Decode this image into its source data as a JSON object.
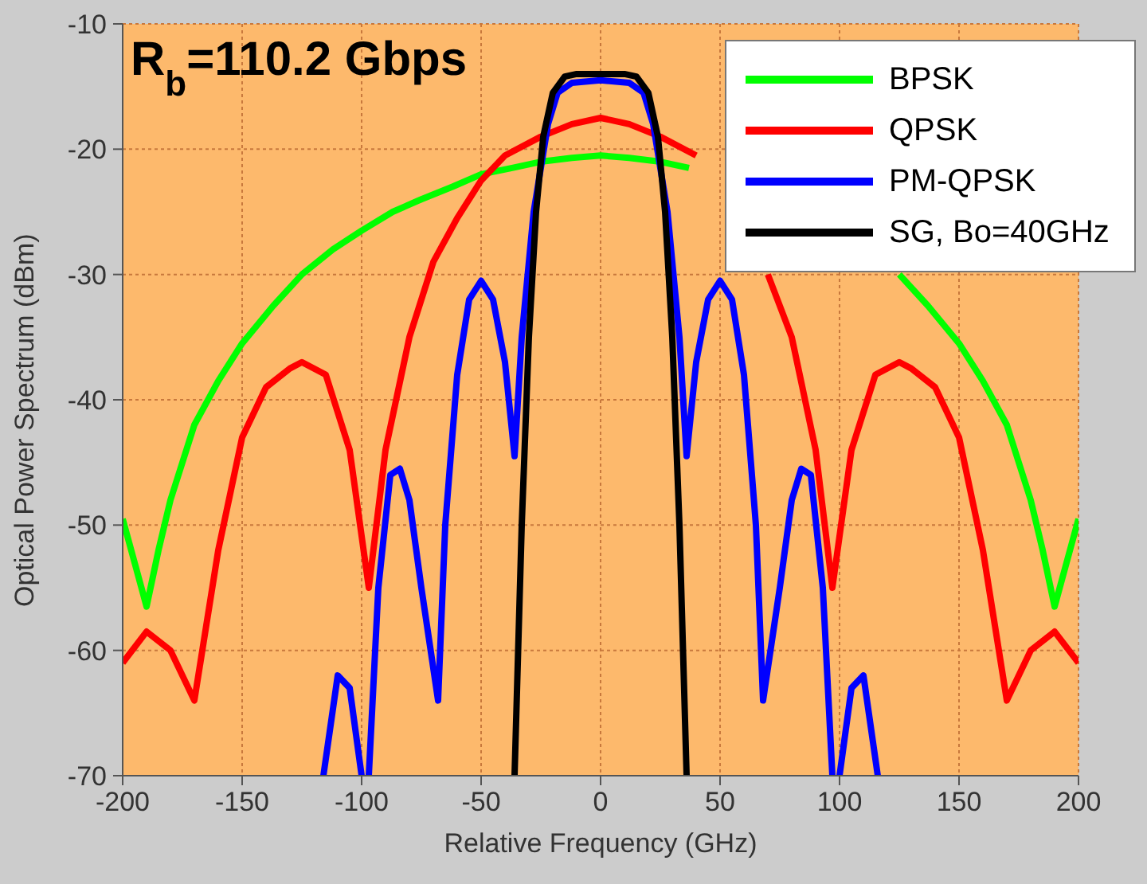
{
  "chart_data": {
    "type": "line",
    "xlabel": "Relative Frequency (GHz)",
    "ylabel": "Optical Power Spectrum (dBm)",
    "annotations": [
      "R$_{b}$=110.2 Gbps"
    ],
    "xlim": [
      -200,
      200
    ],
    "xticks": [
      -200,
      -150,
      -100,
      -50,
      0,
      50,
      100,
      150,
      200
    ],
    "ylim": [
      -70,
      -10
    ],
    "yticks": [
      -70,
      -60,
      -50,
      -40,
      -30,
      -20,
      -10
    ],
    "grid": true,
    "legend": "top right",
    "marker": "none",
    "line_style": "solid",
    "series": [
      {
        "name": "BPSK",
        "color": "#00ff00",
        "x": [
          -200,
          -195,
          -190,
          -185,
          -180,
          -170,
          -160,
          -150,
          -137,
          -125,
          -112,
          -100,
          -87,
          -75,
          -62,
          -50,
          -37,
          -25,
          -12,
          0,
          12,
          25,
          37,
          50,
          62,
          75,
          87,
          100,
          112,
          125,
          137,
          150,
          160,
          170,
          180,
          185,
          190,
          195,
          200
        ],
        "values": [
          -49.5,
          -53,
          -56.5,
          -52,
          -48,
          -42,
          -38.5,
          -35.5,
          -32.5,
          -30,
          -28,
          -26.5,
          -25,
          -24,
          -23,
          -22,
          -21.5,
          -21,
          -20.7,
          -20.5,
          -20.7,
          -21,
          -21.5,
          null,
          null,
          null,
          null,
          null,
          null,
          -30,
          -32.5,
          -35.5,
          -38.5,
          -42,
          -48,
          -52,
          -56.5,
          -53,
          -49.5
        ]
      },
      {
        "name": "QPSK",
        "color": "#ff0000",
        "x": [
          -200,
          -190,
          -180,
          -170,
          -165,
          -160,
          -150,
          -140,
          -130,
          -125,
          -115,
          -105,
          -97,
          -90,
          -80,
          -70,
          -60,
          -50,
          -40,
          -25,
          -12,
          0,
          12,
          25,
          40,
          50,
          60,
          70,
          80,
          90,
          97,
          105,
          115,
          125,
          130,
          140,
          150,
          160,
          165,
          170,
          180,
          190,
          200
        ],
        "values": [
          -61,
          -58.5,
          -60,
          -64,
          -58,
          -52,
          -43,
          -39,
          -37.5,
          -37,
          -38,
          -44,
          -55,
          -44,
          -35,
          -29,
          -25.5,
          -22.5,
          -20.5,
          -19,
          -18,
          -17.5,
          -18,
          -19,
          -20.5,
          null,
          null,
          -30,
          -35,
          -44,
          -55,
          -44,
          -38,
          -37,
          -37.5,
          -39,
          -43,
          -52,
          -58,
          -64,
          -60,
          -58.5,
          -61
        ]
      },
      {
        "name": "PM-QPSK",
        "color": "#0000ff",
        "x": [
          -116,
          -110,
          -105,
          -100,
          -98.5,
          -97,
          -93,
          -88,
          -84,
          -80,
          -75,
          -68,
          -65,
          -60,
          -55,
          -50,
          -45,
          -40,
          -36,
          -33,
          -28,
          -22,
          -18,
          -12,
          0,
          12,
          18,
          22,
          28,
          33,
          36,
          40,
          45,
          50,
          55,
          60,
          65,
          68,
          75,
          80,
          84,
          88,
          93,
          97,
          98.5,
          100,
          105,
          110,
          116
        ],
        "values": [
          -70,
          -62,
          -63,
          -70,
          null,
          -70,
          -55,
          -46,
          -45.5,
          -48,
          -55,
          -64,
          -50,
          -38,
          -32,
          -30.5,
          -32,
          -37,
          -44.5,
          -35,
          -25,
          -18,
          -15.5,
          -14.7,
          -14.5,
          -14.7,
          -15.5,
          -18,
          -25,
          -35,
          -44.5,
          -37,
          -32,
          -30.5,
          -32,
          -38,
          -50,
          -64,
          -55,
          -48,
          -45.5,
          -46,
          -55,
          -70,
          null,
          -70,
          -63,
          -62,
          -70
        ]
      },
      {
        "name": "SG, Bo=40GHz",
        "color": "#000000",
        "x": [
          -36,
          -33,
          -30,
          -27,
          -24,
          -20,
          -15,
          -10,
          0,
          10,
          15,
          20,
          24,
          27,
          30,
          33,
          36
        ],
        "values": [
          -70,
          -50,
          -35,
          -25,
          -19,
          -15.5,
          -14.2,
          -14,
          -14,
          -14,
          -14.2,
          -15.5,
          -19,
          -25,
          -35,
          -50,
          -70
        ]
      }
    ]
  }
}
